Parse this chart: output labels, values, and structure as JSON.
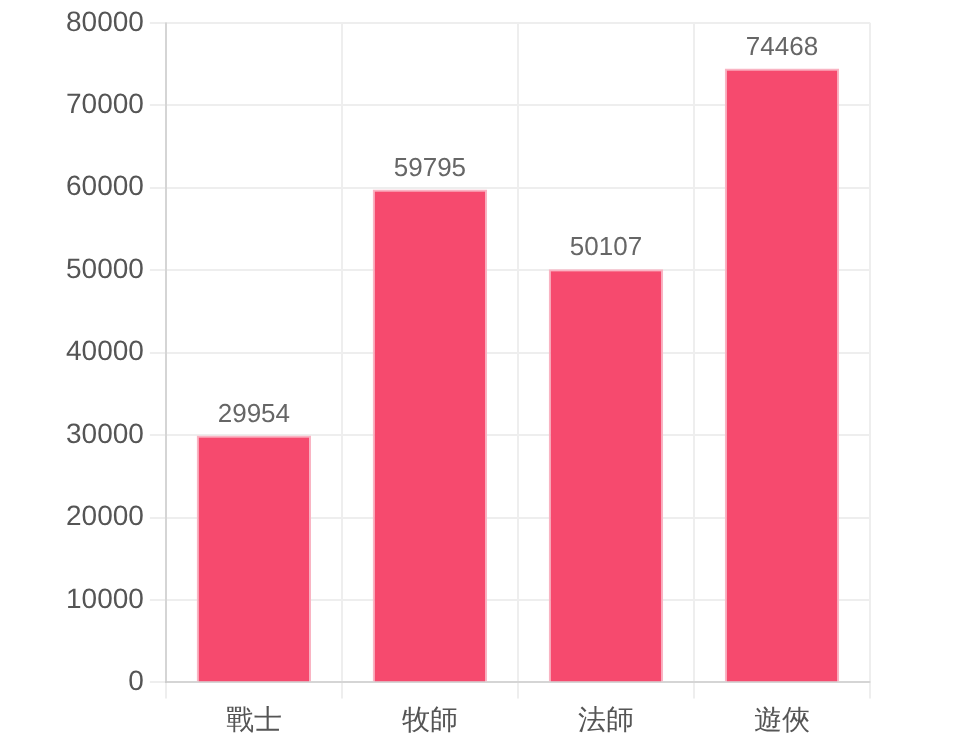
{
  "chart_data": {
    "type": "bar",
    "categories": [
      "戰士",
      "牧師",
      "法師",
      "遊俠"
    ],
    "values": [
      29954,
      59795,
      50107,
      74468
    ],
    "color": "#f64a6e",
    "ylim": [
      0,
      80000
    ],
    "yticks": [
      0,
      10000,
      20000,
      30000,
      40000,
      50000,
      60000,
      70000,
      80000
    ],
    "grid": true,
    "data_labels": true
  }
}
